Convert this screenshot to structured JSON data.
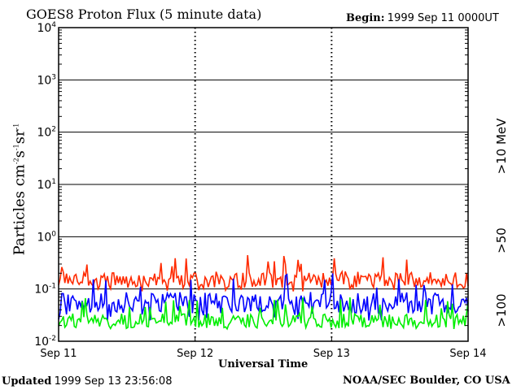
{
  "header": {
    "title": "GOES8 Proton Flux (5 minute data)",
    "begin_label": "Begin:",
    "begin_value": "1999 Sep 11 0000UT"
  },
  "footer": {
    "updated_label": "Updated",
    "updated_value": "1999 Sep 13 23:56:08",
    "credit": "NOAA/SEC Boulder, CO USA"
  },
  "chart_data": {
    "type": "line",
    "title": "GOES8 Proton Flux (5 minute data)",
    "xlabel": "Universal Time",
    "ylabel": {
      "base": "Particles cm",
      "exp1": "-2",
      "mid1": "s",
      "exp2": "-1",
      "mid2": "sr",
      "exp3": "-1"
    },
    "y_scale": "log",
    "ylim": [
      0.01,
      10000
    ],
    "y_ticks": [
      {
        "value": 0.01,
        "base": "10",
        "exp": "-2"
      },
      {
        "value": 0.1,
        "base": "10",
        "exp": "-1"
      },
      {
        "value": 1,
        "base": "10",
        "exp": "0"
      },
      {
        "value": 10,
        "base": "10",
        "exp": "1"
      },
      {
        "value": 100,
        "base": "10",
        "exp": "2"
      },
      {
        "value": 1000,
        "base": "10",
        "exp": "3"
      },
      {
        "value": 10000,
        "base": "10",
        "exp": "4"
      }
    ],
    "x_start": "1999-09-11T00:00Z",
    "x_end": "1999-09-14T00:00Z",
    "x_ticks": [
      "Sep 11",
      "Sep 12",
      "Sep 13",
      "Sep 14"
    ],
    "grid": true,
    "legend": [
      {
        "label": ">10 MeV",
        "color": "#ff2a00"
      },
      {
        "label": ">50",
        "color": "#0000ff"
      },
      {
        "label": ">100",
        "color": "#00ee00"
      }
    ],
    "series": [
      {
        "name": ">10 MeV",
        "color": "#ff2a00",
        "typical": 0.15,
        "min": 0.09,
        "max": 0.45
      },
      {
        "name": ">50",
        "color": "#0000ff",
        "typical": 0.055,
        "min": 0.025,
        "max": 0.2
      },
      {
        "name": ">100",
        "color": "#00ee00",
        "typical": 0.025,
        "min": 0.017,
        "max": 0.07
      }
    ]
  }
}
